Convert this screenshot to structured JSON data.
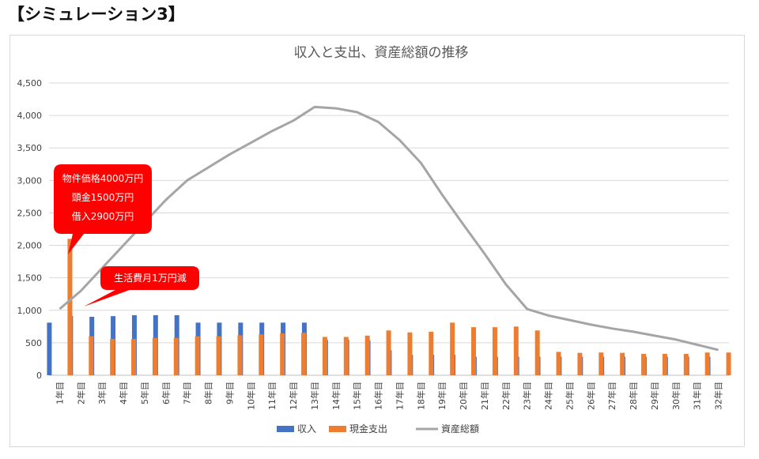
{
  "heading": "【シミュレーション3】",
  "chart_data": {
    "type": "bar",
    "title": "収入と支出、資産総額の推移",
    "categories": [
      "1年目",
      "2年目",
      "3年目",
      "4年目",
      "5年目",
      "6年目",
      "7年目",
      "8年目",
      "9年目",
      "10年目",
      "11年目",
      "12年目",
      "13年目",
      "14年目",
      "15年目",
      "16年目",
      "17年目",
      "18年目",
      "19年目",
      "20年目",
      "21年目",
      "22年目",
      "23年目",
      "24年目",
      "25年目",
      "26年目",
      "27年目",
      "28年目",
      "29年目",
      "30年目",
      "31年目",
      "32年目"
    ],
    "ylim": [
      0,
      4500
    ],
    "yticks": [
      "0",
      "500",
      "1,000",
      "1,500",
      "2,000",
      "2,500",
      "3,000",
      "3,500",
      "4,000",
      "4,500"
    ],
    "grid": true,
    "legend_position": "bottom",
    "series": [
      {
        "name": "収入",
        "kind": "bar",
        "color": "#4472c4",
        "values": [
          810,
          915,
          900,
          910,
          925,
          925,
          925,
          810,
          810,
          810,
          810,
          810,
          810,
          545,
          545,
          535,
          385,
          315,
          315,
          315,
          285,
          285,
          285,
          285,
          285,
          285,
          285,
          285,
          285,
          285,
          285,
          285
        ]
      },
      {
        "name": "現金支出",
        "kind": "bar",
        "color": "#ed7d31",
        "values": [
          2100,
          600,
          560,
          560,
          575,
          575,
          600,
          600,
          615,
          630,
          645,
          655,
          590,
          590,
          610,
          690,
          660,
          670,
          810,
          740,
          740,
          750,
          690,
          360,
          345,
          350,
          345,
          330,
          330,
          330,
          350,
          350
        ]
      },
      {
        "name": "資産総額",
        "kind": "line",
        "color": "#a5a5a5",
        "values": [
          1020,
          1300,
          1650,
          2000,
          2350,
          2700,
          3000,
          3200,
          3400,
          3580,
          3760,
          3920,
          4130,
          4110,
          4050,
          3900,
          3620,
          3270,
          2780,
          2320,
          1870,
          1400,
          1020,
          920,
          850,
          780,
          720,
          670,
          610,
          550,
          470,
          390
        ]
      }
    ],
    "annotations": [
      {
        "lines": [
          "物件価格4000万円",
          "頭金1500万円",
          "借入2900万円"
        ],
        "color": "#ff0000"
      },
      {
        "lines": [
          "生活費月1万円減"
        ],
        "color": "#ff0000"
      }
    ]
  }
}
